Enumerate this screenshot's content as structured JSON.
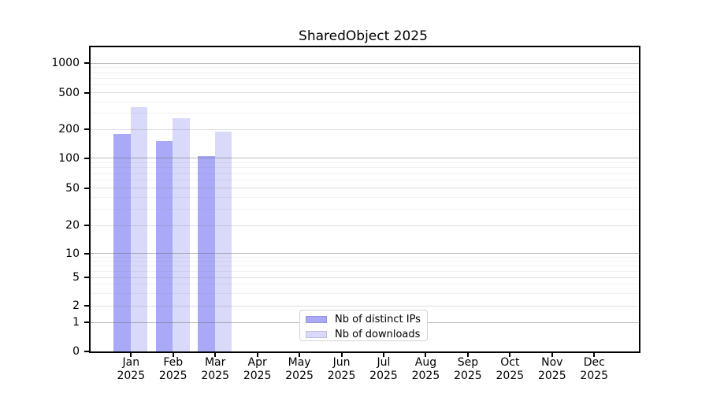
{
  "chart_data": {
    "type": "bar",
    "title": "SharedObject 2025",
    "categories": [
      "Jan 2025",
      "Feb 2025",
      "Mar 2025",
      "Apr 2025",
      "May 2025",
      "Jun 2025",
      "Jul 2025",
      "Aug 2025",
      "Sep 2025",
      "Oct 2025",
      "Nov 2025",
      "Dec 2025"
    ],
    "series": [
      {
        "name": "Nb of distinct IPs",
        "color": "#a9a9f7",
        "values": [
          180,
          150,
          105,
          0,
          0,
          0,
          0,
          0,
          0,
          0,
          0,
          0
        ]
      },
      {
        "name": "Nb of downloads",
        "color": "#d9d9f9",
        "values": [
          350,
          265,
          190,
          0,
          0,
          0,
          0,
          0,
          0,
          0,
          0,
          0
        ]
      }
    ],
    "xlabel": "",
    "ylabel": "",
    "yscale": "symlog",
    "yticks": [
      0,
      1,
      2,
      5,
      10,
      20,
      50,
      100,
      200,
      500,
      1000
    ],
    "ylim": [
      0,
      1450
    ],
    "grid": "both",
    "legend_position": "lower center",
    "colors": {
      "spine": "#000000",
      "grid_major": "#a6a6a6",
      "grid_minor": "#e8e8e8",
      "background": "#ffffff"
    }
  }
}
